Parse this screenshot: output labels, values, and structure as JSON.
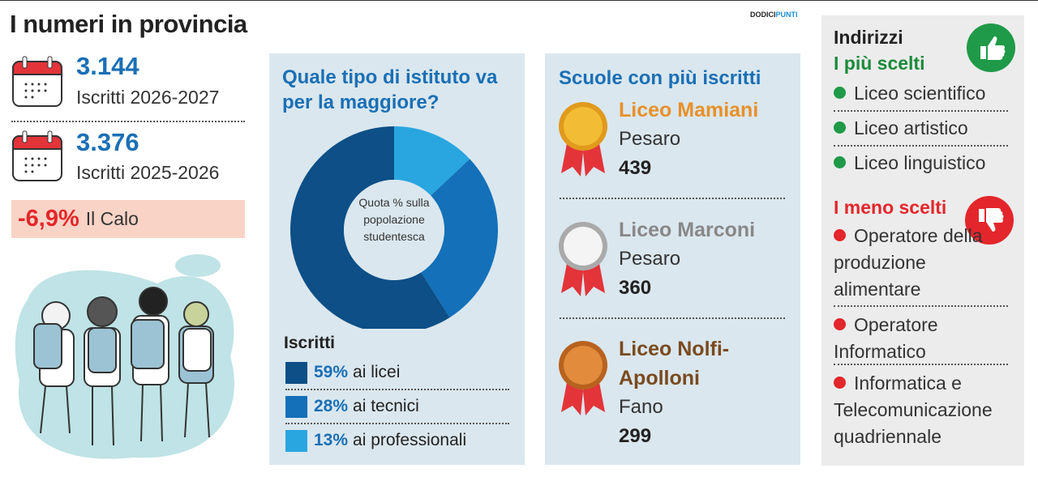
{
  "header": {
    "title": "I numeri in provincia",
    "brand_a": "DODICI",
    "brand_b": "PUNTI"
  },
  "stats": [
    {
      "value": "3.144",
      "label": "Iscritti 2026-2027"
    },
    {
      "value": "3.376",
      "label": "Iscritti 2025-2026"
    }
  ],
  "change": {
    "value": "-6,9%",
    "label": "Il Calo"
  },
  "chart_data": {
    "type": "donut",
    "title": "Quale tipo di istituto va per la maggiore?",
    "center_text": "Quota % sulla popolazione studentesca",
    "legend_title": "Iscritti",
    "categories": [
      "ai licei",
      "ai tecnici",
      "ai professionali"
    ],
    "values": [
      59,
      28,
      13
    ],
    "value_labels": [
      "59%",
      "28%",
      "13%"
    ],
    "colors": [
      "#0d4f86",
      "#1470b8",
      "#29a6e0"
    ]
  },
  "schools": {
    "title": "Scuole con più iscritti",
    "items": [
      {
        "name": "Liceo Mamiani",
        "city": "Pesaro",
        "count": 439
      },
      {
        "name": "Liceo Marconi",
        "city": "Pesaro",
        "count": 360
      },
      {
        "name": "Liceo Nolfi-Apolloni",
        "city": "Fano",
        "count": 299
      }
    ]
  },
  "choices": {
    "title": "Indirizzi",
    "top_title": "I più scelti",
    "top": [
      "Liceo scientifico",
      "Liceo artistico",
      "Liceo linguistico"
    ],
    "bottom_title": "I meno scelti",
    "bottom": [
      "Operatore della produzione alimentare",
      "Operatore Informatico",
      "Informatica e Telecomunicazione quadriennale"
    ]
  }
}
